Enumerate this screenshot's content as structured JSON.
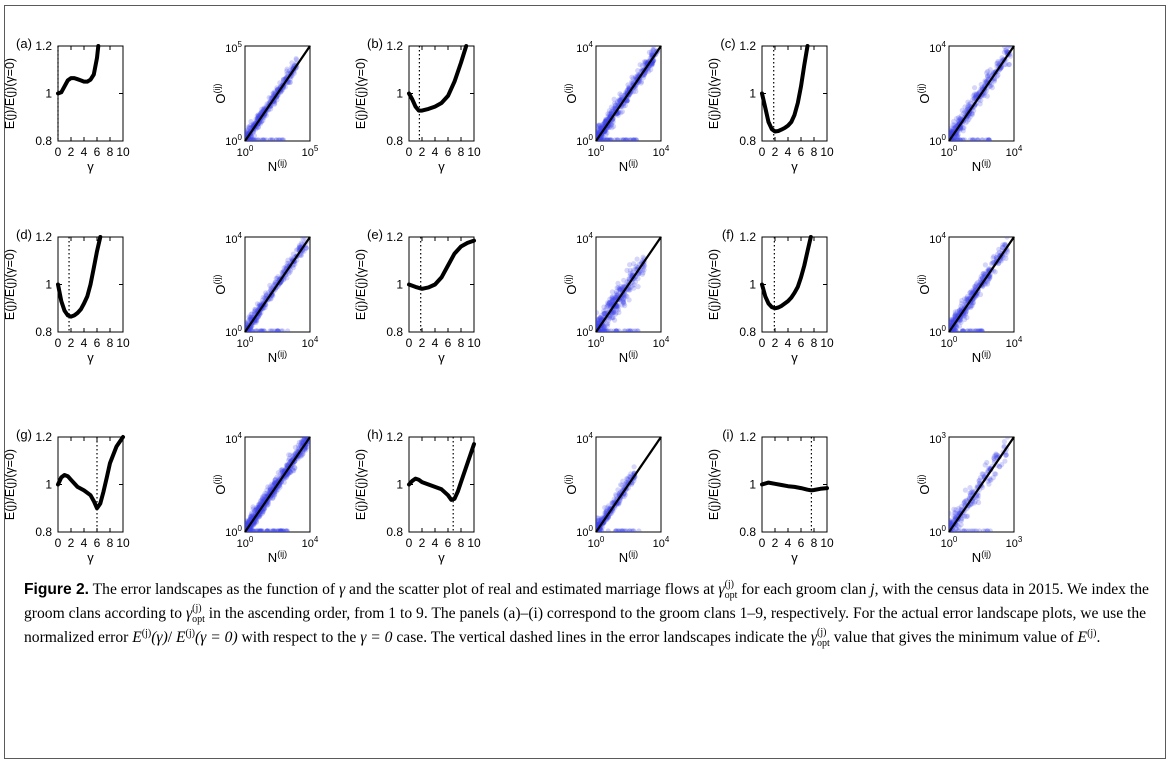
{
  "chart_data": [
    {
      "panel": "a",
      "type": "line",
      "title": "",
      "xlabel": "γ",
      "ylabel": "E(j)/E(j)(γ=0)",
      "xlim": [
        0,
        10
      ],
      "ylim": [
        0.8,
        1.2
      ],
      "xticks": [
        "0",
        "2",
        "4",
        "6",
        "8",
        "10"
      ],
      "yticks": [
        "0.8",
        "1",
        "1.2"
      ],
      "gamma_opt": 0.0,
      "x": [
        0,
        0.5,
        1,
        1.5,
        2,
        2.5,
        3,
        3.5,
        4,
        4.5,
        5,
        5.5,
        6,
        6.2
      ],
      "y": [
        1.0,
        1.005,
        1.03,
        1.055,
        1.065,
        1.065,
        1.06,
        1.055,
        1.05,
        1.05,
        1.058,
        1.08,
        1.15,
        1.2
      ]
    },
    {
      "panel": "a",
      "type": "scatter",
      "xlabel": "N(ij)",
      "ylabel": "O(ij)",
      "log": true,
      "xmax_exp": 5,
      "ymax_exp": 5,
      "n_points": 380,
      "spread": 0.35,
      "max_frac": 0.8
    },
    {
      "panel": "b",
      "type": "line",
      "xlabel": "γ",
      "ylabel": "E(j)/E(j)(γ=0)",
      "xlim": [
        0,
        10
      ],
      "ylim": [
        0.8,
        1.2
      ],
      "xticks": [
        "0",
        "2",
        "4",
        "6",
        "8",
        "10"
      ],
      "yticks": [
        "0.8",
        "1",
        "1.2"
      ],
      "gamma_opt": 1.6,
      "x": [
        0,
        0.5,
        1,
        1.5,
        2,
        3,
        4,
        5,
        6,
        7,
        8,
        8.8
      ],
      "y": [
        1.0,
        0.975,
        0.945,
        0.928,
        0.928,
        0.935,
        0.945,
        0.96,
        0.99,
        1.05,
        1.13,
        1.2
      ]
    },
    {
      "panel": "b",
      "type": "scatter",
      "xlabel": "N(ij)",
      "ylabel": "O(ij)",
      "log": true,
      "xmax_exp": 4,
      "ymax_exp": 4,
      "n_points": 520,
      "spread": 0.45,
      "max_frac": 0.95
    },
    {
      "panel": "c",
      "type": "line",
      "xlabel": "γ",
      "ylabel": "E(j)/E(j)(γ=0)",
      "xlim": [
        0,
        10
      ],
      "ylim": [
        0.8,
        1.2
      ],
      "xticks": [
        "0",
        "2",
        "4",
        "6",
        "8",
        "10"
      ],
      "yticks": [
        "0.8",
        "1",
        "1.2"
      ],
      "gamma_opt": 1.8,
      "x": [
        0,
        0.5,
        1,
        1.5,
        2,
        2.5,
        3,
        3.5,
        4,
        4.5,
        5,
        5.5,
        6,
        6.5,
        7
      ],
      "y": [
        1.0,
        0.94,
        0.88,
        0.85,
        0.84,
        0.842,
        0.848,
        0.855,
        0.865,
        0.88,
        0.91,
        0.96,
        1.03,
        1.12,
        1.2
      ]
    },
    {
      "panel": "c",
      "type": "scatter",
      "xlabel": "N(ij)",
      "ylabel": "O(ij)",
      "log": true,
      "xmax_exp": 4,
      "ymax_exp": 4,
      "n_points": 380,
      "spread": 0.55,
      "max_frac": 0.95
    },
    {
      "panel": "d",
      "type": "line",
      "xlabel": "γ",
      "ylabel": "E(j)/E(j)(γ=0)",
      "xlim": [
        0,
        10
      ],
      "ylim": [
        0.8,
        1.2
      ],
      "xticks": [
        "0",
        "2",
        "4",
        "6",
        "8",
        "10"
      ],
      "yticks": [
        "0.8",
        "1",
        "1.2"
      ],
      "gamma_opt": 1.7,
      "x": [
        0,
        0.5,
        1,
        1.5,
        2,
        2.5,
        3,
        3.5,
        4,
        4.5,
        5,
        5.5,
        6,
        6.5
      ],
      "y": [
        1.0,
        0.93,
        0.89,
        0.87,
        0.865,
        0.87,
        0.88,
        0.895,
        0.92,
        0.95,
        1.0,
        1.07,
        1.14,
        1.2
      ]
    },
    {
      "panel": "d",
      "type": "scatter",
      "xlabel": "N(ij)",
      "ylabel": "O(ij)",
      "log": true,
      "xmax_exp": 4,
      "ymax_exp": 4,
      "n_points": 360,
      "spread": 0.4,
      "max_frac": 0.95
    },
    {
      "panel": "e",
      "type": "line",
      "xlabel": "γ",
      "ylabel": "E(j)/E(j)(γ=0)",
      "xlim": [
        0,
        10
      ],
      "ylim": [
        0.8,
        1.2
      ],
      "xticks": [
        "0",
        "2",
        "4",
        "6",
        "8",
        "10"
      ],
      "yticks": [
        "0.8",
        "1",
        "1.2"
      ],
      "gamma_opt": 1.8,
      "x": [
        0,
        1,
        2,
        3,
        4,
        5,
        6,
        7,
        8,
        9,
        10
      ],
      "y": [
        1.0,
        0.99,
        0.982,
        0.988,
        1.0,
        1.03,
        1.08,
        1.13,
        1.16,
        1.175,
        1.185
      ]
    },
    {
      "panel": "e",
      "type": "scatter",
      "xlabel": "N(ij)",
      "ylabel": "O(ij)",
      "log": true,
      "xmax_exp": 4,
      "ymax_exp": 4,
      "n_points": 360,
      "spread": 0.75,
      "max_frac": 0.75
    },
    {
      "panel": "f",
      "type": "line",
      "xlabel": "γ",
      "ylabel": "E(j)/E(j)(γ=0)",
      "xlim": [
        0,
        10
      ],
      "ylim": [
        0.8,
        1.2
      ],
      "xticks": [
        "0",
        "2",
        "4",
        "6",
        "8",
        "10"
      ],
      "yticks": [
        "0.8",
        "1",
        "1.2"
      ],
      "gamma_opt": 1.9,
      "x": [
        0,
        0.5,
        1,
        1.5,
        2,
        2.5,
        3,
        3.5,
        4,
        4.5,
        5,
        5.5,
        6,
        6.5,
        7,
        7.5
      ],
      "y": [
        1.0,
        0.95,
        0.92,
        0.905,
        0.9,
        0.903,
        0.91,
        0.92,
        0.93,
        0.945,
        0.965,
        0.99,
        1.03,
        1.08,
        1.14,
        1.2
      ]
    },
    {
      "panel": "f",
      "type": "scatter",
      "xlabel": "N(ij)",
      "ylabel": "O(ij)",
      "log": true,
      "xmax_exp": 4,
      "ymax_exp": 4,
      "n_points": 380,
      "spread": 0.5,
      "max_frac": 0.9
    },
    {
      "panel": "g",
      "type": "line",
      "xlabel": "γ",
      "ylabel": "E(j)/E(j)(γ=0)",
      "xlim": [
        0,
        10
      ],
      "ylim": [
        0.8,
        1.2
      ],
      "xticks": [
        "0",
        "2",
        "4",
        "6",
        "8",
        "10"
      ],
      "yticks": [
        "0.8",
        "1",
        "1.2"
      ],
      "gamma_opt": 6.0,
      "x": [
        0,
        0.5,
        1,
        1.5,
        2,
        3,
        4,
        5,
        5.5,
        6,
        6.5,
        7,
        7.5,
        8,
        9,
        10
      ],
      "y": [
        1.0,
        1.03,
        1.04,
        1.035,
        1.02,
        0.99,
        0.975,
        0.955,
        0.93,
        0.9,
        0.92,
        0.97,
        1.03,
        1.09,
        1.16,
        1.2
      ]
    },
    {
      "panel": "g",
      "type": "scatter",
      "xlabel": "N(ij)",
      "ylabel": "O(ij)",
      "log": true,
      "xmax_exp": 4,
      "ymax_exp": 4,
      "n_points": 700,
      "spread": 0.45,
      "max_frac": 1.0
    },
    {
      "panel": "h",
      "type": "line",
      "xlabel": "γ",
      "ylabel": "E(j)/E(j)(γ=0)",
      "xlim": [
        0,
        10
      ],
      "ylim": [
        0.8,
        1.2
      ],
      "xticks": [
        "0",
        "2",
        "4",
        "6",
        "8",
        "10"
      ],
      "yticks": [
        "0.8",
        "1",
        "1.2"
      ],
      "gamma_opt": 6.8,
      "x": [
        0,
        0.5,
        1,
        1.5,
        2,
        3,
        4,
        5,
        6,
        6.5,
        7,
        7.5,
        8,
        9,
        10
      ],
      "y": [
        1.0,
        1.015,
        1.025,
        1.02,
        1.01,
        1.0,
        0.99,
        0.98,
        0.955,
        0.935,
        0.94,
        0.97,
        1.01,
        1.09,
        1.17
      ]
    },
    {
      "panel": "h",
      "type": "scatter",
      "xlabel": "N(ij)",
      "ylabel": "O(ij)",
      "log": true,
      "xmax_exp": 4,
      "ymax_exp": 4,
      "n_points": 280,
      "spread": 0.35,
      "max_frac": 0.6
    },
    {
      "panel": "i",
      "type": "line",
      "xlabel": "γ",
      "ylabel": "E(j)/E(j)(γ=0)",
      "xlim": [
        0,
        10
      ],
      "ylim": [
        0.8,
        1.2
      ],
      "xticks": [
        "0",
        "2",
        "4",
        "6",
        "8",
        "10"
      ],
      "yticks": [
        "0.8",
        "1",
        "1.2"
      ],
      "gamma_opt": 7.6,
      "x": [
        0,
        1,
        2,
        3,
        4,
        5,
        6,
        7,
        7.6,
        8,
        9,
        10
      ],
      "y": [
        1.0,
        1.008,
        1.003,
        0.998,
        0.993,
        0.99,
        0.985,
        0.978,
        0.975,
        0.977,
        0.982,
        0.985
      ]
    },
    {
      "panel": "i",
      "type": "scatter",
      "xlabel": "N(ij)",
      "ylabel": "O(ij)",
      "log": true,
      "xmax_exp": 3,
      "ymax_exp": 3,
      "n_points": 220,
      "spread": 0.7,
      "max_frac": 0.9
    }
  ],
  "colors": {
    "line": "#000000",
    "scatter": "#3f46e8",
    "frame": "#5a5a5a"
  },
  "caption": {
    "label": "Figure 2.",
    "t1": " The error landscapes as the function of ",
    "t2": " and the scatter plot of real and estimated marriage flows at ",
    "t3": " for each groom clan ",
    "t4": ", with the census data in 2015. We index the groom clans according to ",
    "t5": " in the ascending order, from 1 to 9. The panels (a)–(i) correspond to the groom clans 1–9, respectively. For the actual error landscape plots, we use the normalized error ",
    "t6": " with respect to the ",
    "t7": " case. The vertical dashed lines in the error landscapes indicate the ",
    "t8": " value that gives the minimum value of ",
    "t9": ".",
    "gamma": "γ",
    "j": "j",
    "E": "E",
    "sup_j": "(j)",
    "sub_opt": "opt",
    "gamma_paren": "(γ)",
    "slash": "/ ",
    "gamma_eq0_paren": "(γ = 0)",
    "gamma_eq0": "γ = 0"
  }
}
